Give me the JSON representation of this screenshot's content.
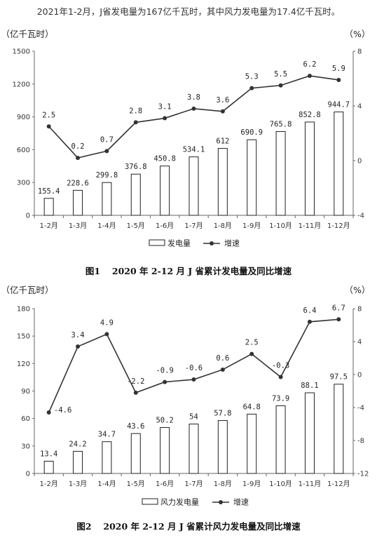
{
  "intro_text": "2021年1-2月，J省发电量为167亿千瓦时，其中风力发电量为17.4亿千瓦时。",
  "chart_data": [
    {
      "type": "bar",
      "title": "图1　 2020 年 2-12 月 J 省累计发电量及同比增速",
      "left_unit": "（亿千瓦时）",
      "right_unit": "（%）",
      "categories": [
        "1-2月",
        "1-3月",
        "1-4月",
        "1-5月",
        "1-6月",
        "1-7月",
        "1-8月",
        "1-9月",
        "1-10月",
        "1-11月",
        "1-12月"
      ],
      "series": [
        {
          "name": "发电量",
          "type": "bar",
          "axis": "left",
          "values": [
            155.4,
            228.6,
            299.8,
            376.8,
            450.8,
            534.1,
            612,
            690.9,
            765.8,
            852.8,
            944.7
          ],
          "labels": [
            "155.4",
            "228.6",
            "299.8",
            "376.8",
            "450.8",
            "534.1",
            "612",
            "690.9",
            "765.8",
            "852.8",
            "944.7"
          ]
        },
        {
          "name": "增速",
          "type": "line",
          "axis": "right",
          "values": [
            2.5,
            0.2,
            0.7,
            2.8,
            3.1,
            3.8,
            3.6,
            5.3,
            5.5,
            6.2,
            5.9
          ],
          "labels": [
            "2.5",
            "0.2",
            "0.7",
            "2.8",
            "3.1",
            "3.8",
            "3.6",
            "5.3",
            "5.5",
            "6.2",
            "5.9"
          ]
        }
      ],
      "ylim_left": [
        0,
        1500
      ],
      "yticks_left": [
        "0",
        "300",
        "600",
        "900",
        "1200",
        "1500"
      ],
      "ylim_right": [
        -4,
        8
      ],
      "yticks_right": [
        "-4",
        "0",
        "4",
        "8"
      ],
      "legend_position": "bottom"
    },
    {
      "type": "bar",
      "title": "图2　 2020 年 2-12 月 J 省累计风力发电量及同比增速",
      "left_unit": "（亿千瓦时）",
      "right_unit": "（%）",
      "categories": [
        "1-2月",
        "1-3月",
        "1-4月",
        "1-5月",
        "1-6月",
        "1-7月",
        "1-8月",
        "1-9月",
        "1-10月",
        "1-11月",
        "1-12月"
      ],
      "series": [
        {
          "name": "风力发电量",
          "type": "bar",
          "axis": "left",
          "values": [
            13.4,
            24.2,
            34.7,
            43.6,
            50.2,
            54,
            57.8,
            64.8,
            73.9,
            88.1,
            97.5
          ],
          "labels": [
            "13.4",
            "24.2",
            "34.7",
            "43.6",
            "50.2",
            "54",
            "57.8",
            "64.8",
            "73.9",
            "88.1",
            "97.5"
          ]
        },
        {
          "name": "增速",
          "type": "line",
          "axis": "right",
          "values": [
            -4.6,
            3.4,
            4.9,
            -2.2,
            -0.9,
            -0.6,
            0.6,
            2.5,
            -0.3,
            6.4,
            6.7
          ],
          "labels": [
            "-4.6",
            "3.4",
            "4.9",
            "-2.2",
            "-0.9",
            "-0.6",
            "0.6",
            "2.5",
            "-0.3",
            "6.4",
            "6.7"
          ]
        }
      ],
      "ylim_left": [
        0,
        180
      ],
      "yticks_left": [
        "0",
        "30",
        "60",
        "90",
        "120",
        "150",
        "180"
      ],
      "ylim_right": [
        -12,
        8
      ],
      "yticks_right": [
        "-12",
        "-8",
        "-4",
        "0",
        "4",
        "8"
      ],
      "legend_position": "bottom"
    }
  ]
}
